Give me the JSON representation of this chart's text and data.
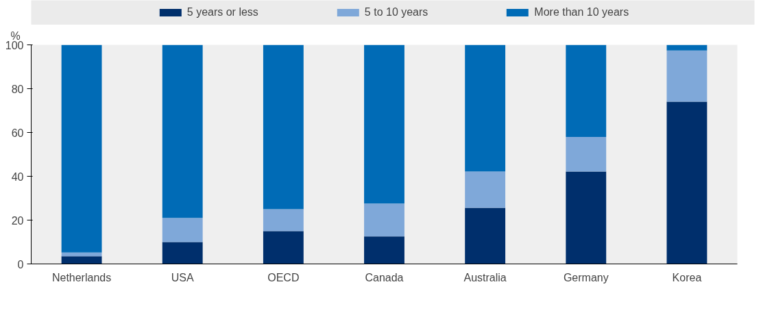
{
  "chart_data": {
    "type": "bar",
    "stacked": true,
    "ylabel": "%",
    "categories": [
      "Netherlands",
      "USA",
      "OECD",
      "Canada",
      "Australia",
      "Germany",
      "Korea"
    ],
    "series": [
      {
        "name": "5 years or less",
        "color": "#002f6c",
        "values": [
          3.5,
          10,
          15,
          12.6,
          25.6,
          42.2,
          74.1
        ]
      },
      {
        "name": "5 to 10 years",
        "color": "#7fa8d9",
        "values": [
          1.7,
          11,
          10,
          15,
          16.6,
          15.8,
          23.3
        ]
      },
      {
        "name": "More than 10 years",
        "color": "#006bb6",
        "values": [
          94.8,
          79,
          75,
          72.4,
          57.8,
          42,
          2.6
        ]
      }
    ],
    "ylim": [
      0,
      100
    ],
    "yticks": [
      0,
      20,
      40,
      60,
      80,
      100
    ],
    "grid": false,
    "legend": "top"
  }
}
